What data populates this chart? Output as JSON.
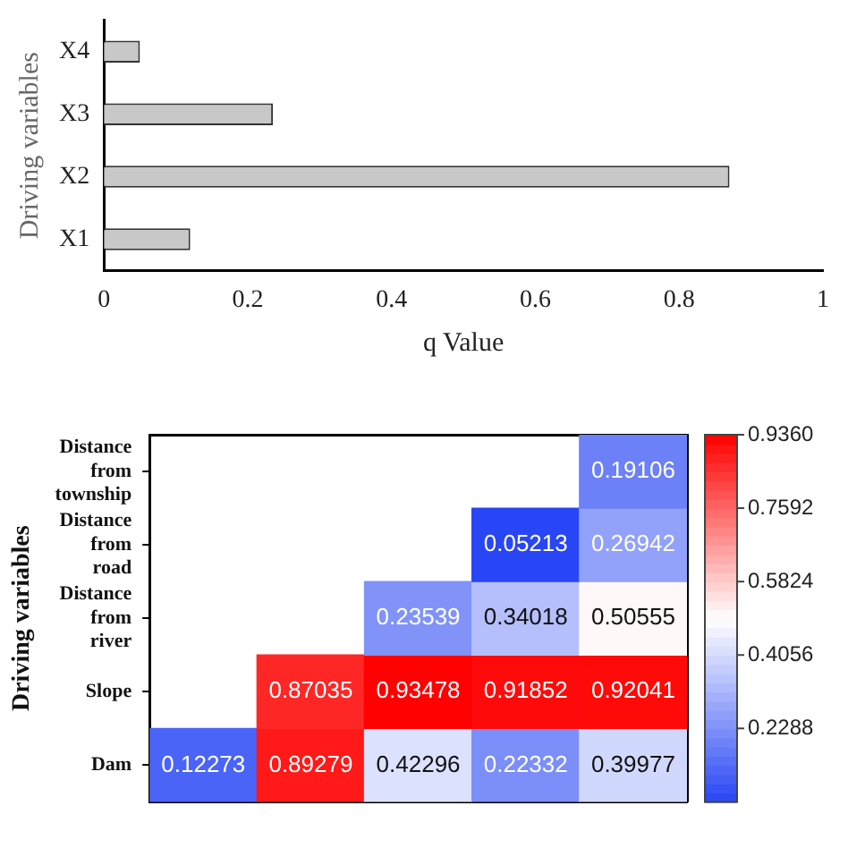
{
  "chart_data": [
    {
      "type": "bar",
      "orientation": "horizontal",
      "ylabel": "Driving variables",
      "xlabel": "q Value",
      "categories": [
        "X4",
        "X3",
        "X2",
        "X1"
      ],
      "values": [
        0.05,
        0.235,
        0.87,
        0.12
      ],
      "color": "#c8c8c8",
      "xlim": [
        0,
        1
      ],
      "xticks": [
        0,
        0.2,
        0.4,
        0.6,
        0.8,
        1
      ],
      "grid": false,
      "legend": false
    },
    {
      "type": "heatmap",
      "ylabel": "Driving variables",
      "categories": [
        null,
        null,
        null,
        null,
        null
      ],
      "y_categories": [
        "Distance from township",
        "Distance from road",
        "Distance from river",
        "Slope",
        "Dam"
      ],
      "cells": [
        [
          null,
          null,
          null,
          null,
          0.19106
        ],
        [
          null,
          null,
          null,
          0.05213,
          0.26942
        ],
        [
          null,
          null,
          0.23539,
          0.34018,
          0.50555
        ],
        [
          null,
          0.87035,
          0.93478,
          0.91852,
          0.92041
        ],
        [
          0.12273,
          0.89279,
          0.42296,
          0.22332,
          0.39977
        ]
      ],
      "data_labels": true,
      "clim": [
        0.052,
        0.936
      ],
      "cticks": [
        {
          "value": 0.2288,
          "label": "0.2288"
        },
        {
          "value": 0.4056,
          "label": "0.4056"
        },
        {
          "value": 0.5824,
          "label": "0.5824"
        },
        {
          "value": 0.7592,
          "label": "0.7592"
        },
        {
          "value": 0.936,
          "label": "0.9360"
        }
      ]
    }
  ]
}
